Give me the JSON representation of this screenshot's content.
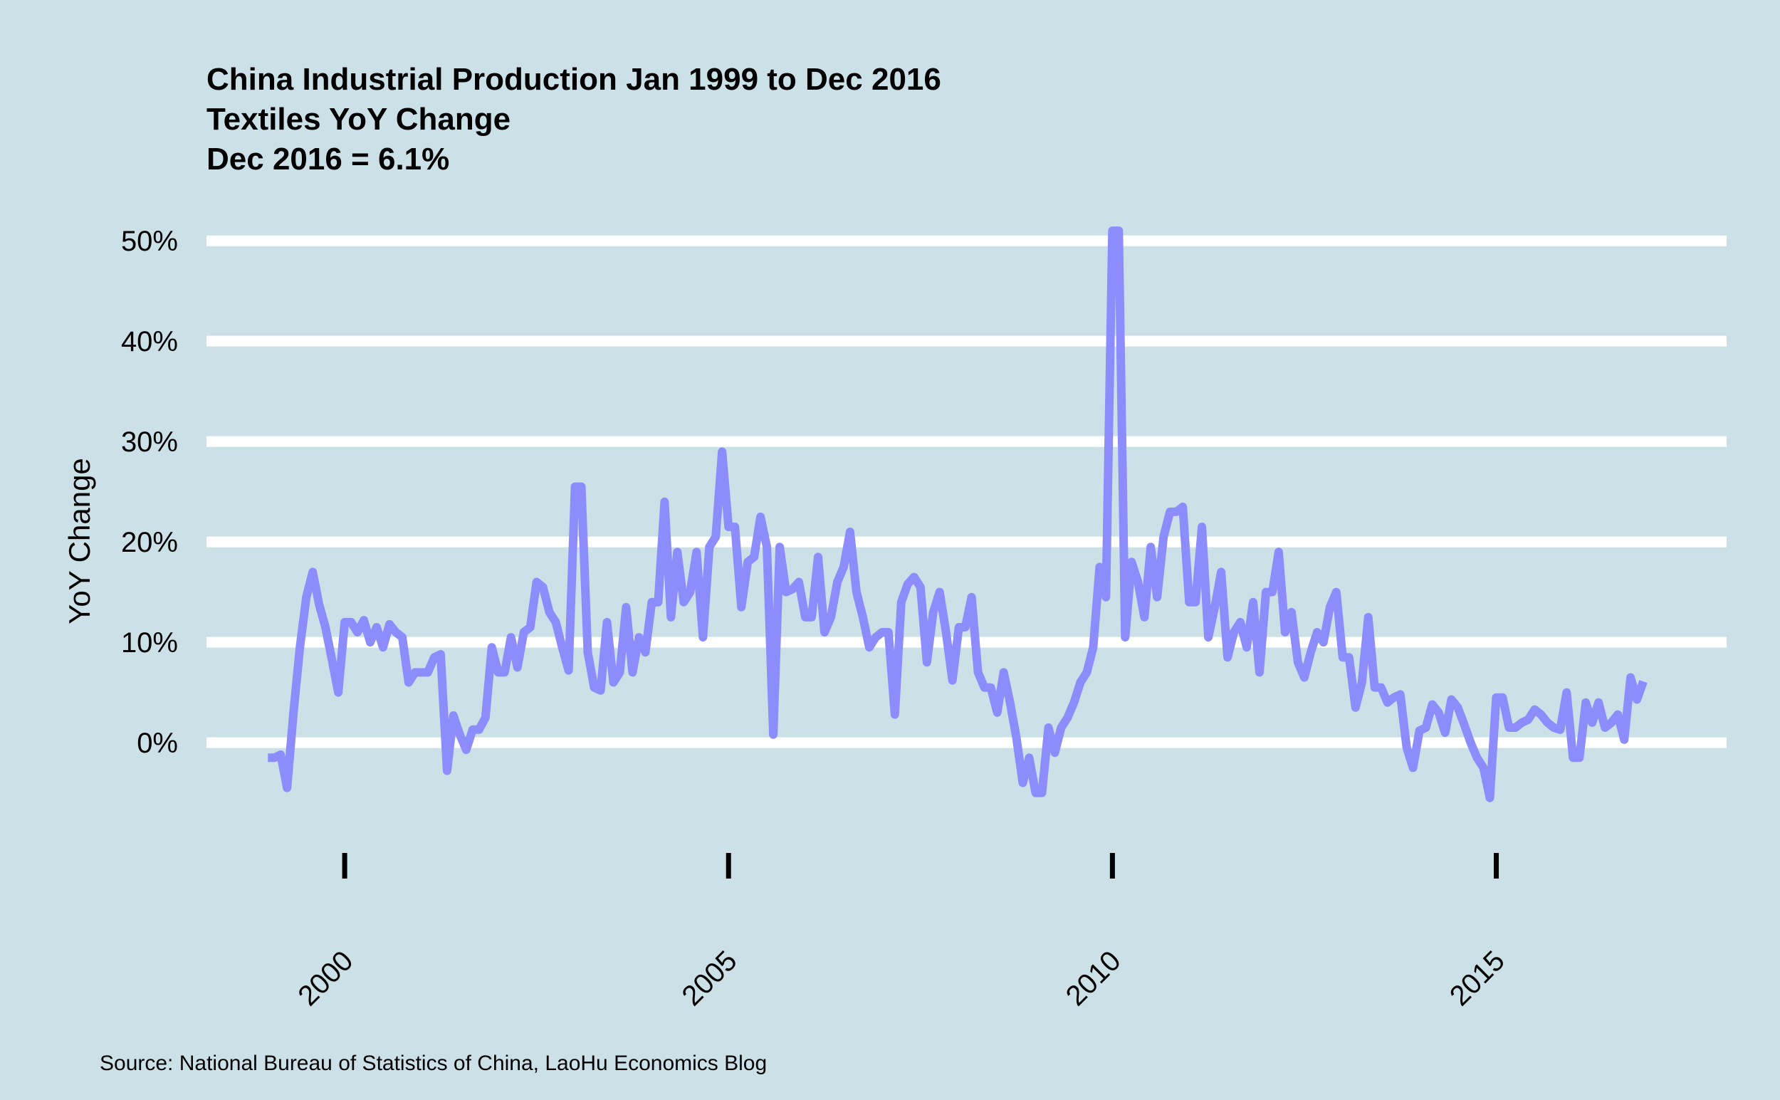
{
  "chart_data": {
    "type": "line",
    "title": [
      "China Industrial Production Jan 1999 to Dec 2016",
      "Textiles YoY Change",
      "Dec 2016 = 6.1%"
    ],
    "xlabel": "",
    "ylabel": "YoY Change",
    "caption": "Source: National Bureau of Statistics of China, LaoHu Economics Blog",
    "x_start": 1999.0,
    "x_step": 0.08333,
    "xlim": [
      1998.2,
      2018.0
    ],
    "ylim": [
      -9,
      52
    ],
    "x_ticks": [
      2000,
      2005,
      2010,
      2015
    ],
    "x_tick_labels": [
      "2000",
      "2005",
      "2010",
      "2015"
    ],
    "y_ticks": [
      0,
      10,
      20,
      30,
      40,
      50
    ],
    "y_tick_labels": [
      "0%",
      "10%",
      "20%",
      "30%",
      "40%",
      "50%"
    ],
    "grid": "horizontal",
    "line_color": "#8c8cfc",
    "gridline_color": "#ffffff",
    "background_color": "#cce0e8",
    "series": [
      {
        "name": "Textiles YoY Change",
        "values": [
          -1.5,
          -1.5,
          -1.2,
          -4.5,
          3.0,
          9.5,
          14.5,
          17.0,
          13.8,
          11.5,
          8.3,
          5.0,
          12.0,
          12.0,
          11.0,
          12.2,
          10.0,
          11.5,
          9.5,
          11.8,
          11.0,
          10.5,
          6.0,
          7.0,
          7.0,
          7.0,
          8.5,
          8.8,
          -2.8,
          2.7,
          0.8,
          -0.7,
          1.3,
          1.3,
          2.5,
          9.5,
          7.0,
          7.0,
          10.5,
          7.5,
          11.0,
          11.5,
          16.0,
          15.5,
          13.0,
          12.0,
          9.5,
          7.2,
          25.5,
          25.5,
          9.0,
          5.5,
          5.2,
          12.0,
          6.0,
          7.0,
          13.5,
          7.0,
          10.5,
          9.0,
          14.0,
          14.0,
          24.0,
          12.5,
          19.0,
          14.0,
          15.0,
          19.0,
          10.5,
          19.5,
          20.5,
          29.0,
          21.5,
          21.5,
          13.5,
          18.0,
          18.5,
          22.5,
          19.5,
          0.8,
          19.5,
          15.0,
          15.3,
          16.0,
          12.5,
          12.5,
          18.5,
          11.0,
          12.5,
          16.0,
          17.5,
          21.0,
          15.0,
          12.5,
          9.5,
          10.5,
          11.0,
          11.0,
          2.8,
          14.0,
          15.8,
          16.5,
          15.5,
          8.0,
          13.0,
          15.0,
          11.0,
          6.2,
          11.5,
          11.5,
          14.5,
          7.0,
          5.5,
          5.5,
          3.0,
          7.0,
          4.0,
          0.5,
          -4.0,
          -1.5,
          -5.0,
          -5.0,
          1.5,
          -1.0,
          1.5,
          2.5,
          4.0,
          6.0,
          7.0,
          9.5,
          17.5,
          14.5,
          51.0,
          51.0,
          10.5,
          18.0,
          16.0,
          12.5,
          19.5,
          14.5,
          20.5,
          23.0,
          23.0,
          23.5,
          14.0,
          14.0,
          21.5,
          10.5,
          13.5,
          17.0,
          8.5,
          11.0,
          12.0,
          9.5,
          14.0,
          7.0,
          15.0,
          15.0,
          19.0,
          11.0,
          13.0,
          8.0,
          6.5,
          9.0,
          11.0,
          10.0,
          13.5,
          15.0,
          8.5,
          8.5,
          3.5,
          6.0,
          12.5,
          5.5,
          5.5,
          4.0,
          4.5,
          4.8,
          -0.5,
          -2.5,
          1.2,
          1.5,
          3.8,
          3.0,
          1.0,
          4.3,
          3.5,
          1.8,
          0.0,
          -1.5,
          -2.5,
          -5.5,
          4.5,
          4.5,
          1.5,
          1.5,
          2.0,
          2.3,
          3.3,
          2.8,
          2.0,
          1.5,
          1.3,
          5.0,
          -1.5,
          -1.5,
          4.0,
          2.0,
          4.0,
          1.5,
          2.0,
          2.8,
          0.3,
          6.5,
          4.3,
          6.1
        ]
      }
    ]
  }
}
